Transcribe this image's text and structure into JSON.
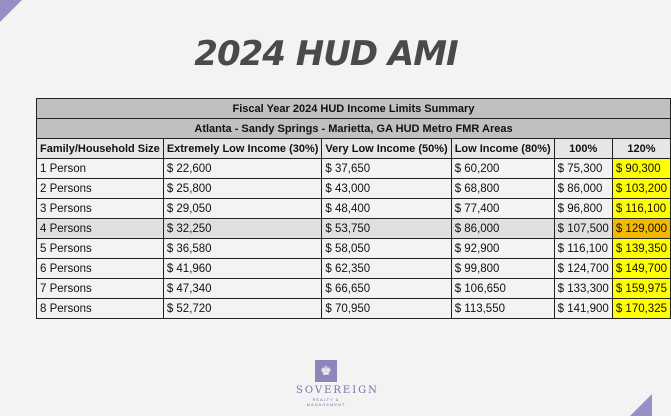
{
  "title": "2024 HUD AMI",
  "table": {
    "banner1": "Fiscal Year 2024 HUD Income Limits Summary",
    "banner2": "Atlanta - Sandy Springs - Marietta, GA HUD Metro FMR Areas",
    "headers": [
      "Family/Household Size",
      "Extremely Low Income (30%)",
      "Very Low Income (50%)",
      "Low Income (80%)",
      "100%",
      "120%"
    ],
    "rows": [
      [
        "1 Person",
        "$ 22,600",
        "$ 37,650",
        "$ 60,200",
        "$ 75,300",
        "$ 90,300"
      ],
      [
        "2 Persons",
        "$ 25,800",
        "$ 43,000",
        "$ 68,800",
        "$ 86,000",
        "$ 103,200"
      ],
      [
        "3 Persons",
        "$ 29,050",
        "$ 48,400",
        "$ 77,400",
        "$ 96,800",
        "$ 116,100"
      ],
      [
        "4 Persons",
        "$ 32,250",
        "$ 53,750",
        "$ 86,000",
        "$ 107,500",
        "$ 129,000"
      ],
      [
        "5 Persons",
        "$ 36,580",
        "$ 58,050",
        "$ 92,900",
        "$ 116,100",
        "$ 139,350"
      ],
      [
        "6 Persons",
        "$ 41,960",
        "$ 62,350",
        "$ 99,800",
        "$ 124,700",
        "$ 149,700"
      ],
      [
        "7 Persons",
        "$ 47,340",
        "$ 66,650",
        "$ 106,650",
        "$ 133,300",
        "$ 159,975"
      ],
      [
        "8 Persons",
        "$ 52,720",
        "$ 70,950",
        "$ 113,550",
        "$ 141,900",
        "$ 170,325"
      ]
    ]
  },
  "logo": {
    "icon": "crown-icon",
    "name": "SOVEREIGN",
    "tagline": "REALTY & MANAGEMENT"
  },
  "colors": {
    "highlight": "#ffff00",
    "highlight_selected": "#f5b800",
    "banner": "#c0c0c0",
    "accent": "#9a8fc4"
  }
}
